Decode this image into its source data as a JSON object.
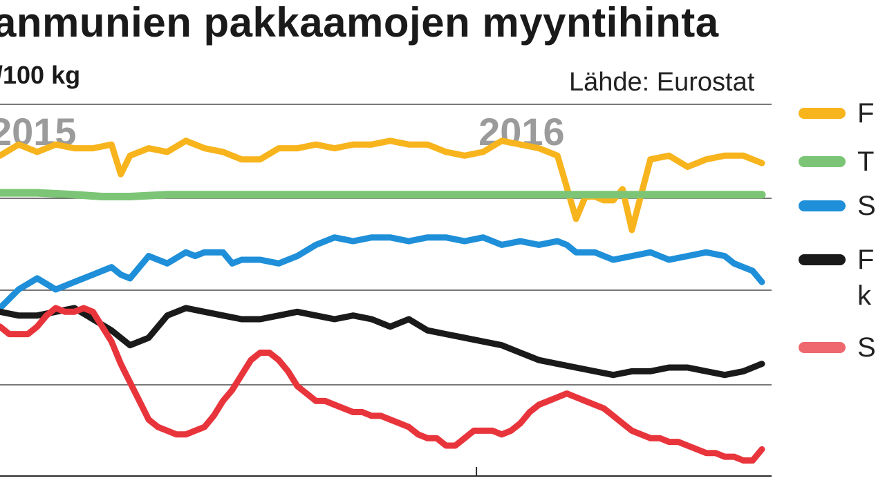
{
  "chart_data": {
    "type": "line",
    "title": "anmunien pakkaamojen myyntihinta",
    "unit_label": "/100 kg",
    "source": "Lähde: Eurostat",
    "year_labels": [
      {
        "label": "2015",
        "x": 1
      },
      {
        "label": "2016",
        "x": 52.5
      }
    ],
    "x_range": [
      1,
      83
    ],
    "y_range": [
      0,
      100
    ],
    "series": [
      {
        "color": "#F7B41C",
        "legend_text": "F",
        "x": [
          1,
          3,
          5,
          7,
          9,
          11,
          13,
          14,
          15,
          17,
          19,
          21,
          23,
          25,
          27,
          29,
          31,
          33,
          35,
          37,
          39,
          41,
          43,
          45,
          47,
          49,
          51,
          53,
          55,
          57,
          59,
          61,
          63,
          64,
          65,
          66,
          67,
          68,
          69,
          71,
          73,
          75,
          77,
          79,
          81,
          83
        ],
        "values": [
          86,
          89,
          87,
          89,
          88,
          88,
          89,
          81,
          86,
          88,
          87,
          90,
          88,
          87,
          85,
          85,
          88,
          88,
          89,
          88,
          89,
          89,
          90,
          89,
          89,
          87,
          86,
          87,
          90,
          89,
          88,
          86,
          69,
          75,
          75,
          74,
          74,
          77,
          66,
          85,
          86,
          83,
          85,
          86,
          86,
          84
        ]
      },
      {
        "color": "#7CC576",
        "legend_text": "T",
        "x": [
          1,
          5,
          9,
          12,
          15,
          19,
          23,
          27,
          31,
          35,
          39,
          43,
          47,
          51,
          55,
          59,
          63,
          67,
          71,
          75,
          79,
          83
        ],
        "values": [
          76,
          76,
          75.5,
          75,
          75,
          75.5,
          75.5,
          75.5,
          75.5,
          75.5,
          75.5,
          75.5,
          75.5,
          75.5,
          75.5,
          75.5,
          75.5,
          75.5,
          75.5,
          75.5,
          75.5,
          75.5
        ]
      },
      {
        "color": "#1E8FD8",
        "legend_text": "S",
        "x": [
          1,
          3,
          5,
          7,
          9,
          11,
          12,
          13,
          14,
          15,
          17,
          19,
          21,
          22,
          23,
          25,
          26,
          27,
          29,
          31,
          33,
          35,
          37,
          39,
          41,
          43,
          45,
          47,
          49,
          51,
          53,
          55,
          57,
          59,
          61,
          62,
          63,
          65,
          67,
          69,
          71,
          73,
          75,
          77,
          79,
          80,
          81,
          82,
          83
        ],
        "values": [
          45,
          50,
          53,
          50,
          52,
          54,
          55,
          56,
          54,
          53,
          59,
          57,
          60,
          59,
          60,
          60,
          57,
          58,
          58,
          57,
          59,
          62,
          64,
          63,
          64,
          64,
          63,
          64,
          64,
          63,
          64,
          62,
          63,
          62,
          63,
          62,
          60,
          60,
          58,
          59,
          60,
          58,
          59,
          60,
          59,
          57,
          56,
          55,
          52
        ]
      },
      {
        "color": "#1A1A1A",
        "legend_text": "F",
        "legend_text_2": "k",
        "x": [
          1,
          3,
          5,
          7,
          9,
          11,
          13,
          15,
          17,
          19,
          21,
          23,
          25,
          27,
          29,
          31,
          33,
          35,
          37,
          39,
          41,
          43,
          45,
          47,
          49,
          51,
          53,
          55,
          57,
          59,
          61,
          63,
          65,
          67,
          69,
          71,
          73,
          75,
          77,
          79,
          81,
          83
        ],
        "values": [
          44,
          43,
          43,
          44,
          45,
          42,
          39,
          35,
          37,
          43,
          45,
          44,
          43,
          42,
          42,
          43,
          44,
          43,
          42,
          43,
          42,
          40,
          42,
          39,
          38,
          37,
          36,
          35,
          33,
          31,
          30,
          29,
          28,
          27,
          28,
          28,
          29,
          29,
          28,
          27,
          28,
          30
        ]
      },
      {
        "color": "#E8353C",
        "legend_text": "S",
        "x": [
          1,
          2,
          3,
          4,
          5,
          6,
          7,
          8,
          9,
          10,
          11,
          12,
          13,
          14,
          15,
          16,
          17,
          18,
          19,
          20,
          21,
          22,
          23,
          24,
          25,
          26,
          27,
          28,
          29,
          30,
          31,
          32,
          33,
          34,
          35,
          36,
          37,
          38,
          39,
          40,
          41,
          42,
          43,
          44,
          45,
          46,
          47,
          48,
          49,
          50,
          51,
          52,
          53,
          54,
          55,
          56,
          57,
          58,
          59,
          60,
          61,
          62,
          63,
          64,
          65,
          66,
          67,
          68,
          69,
          70,
          71,
          72,
          73,
          74,
          75,
          76,
          77,
          78,
          79,
          80,
          81,
          82,
          83
        ],
        "values": [
          40,
          38,
          38,
          38,
          40,
          43,
          45,
          44,
          44,
          45,
          44,
          40,
          36,
          30,
          25,
          20,
          15,
          13,
          12,
          11,
          11,
          12,
          13,
          16,
          20,
          23,
          27,
          31,
          33,
          33,
          31,
          28,
          24,
          22,
          20,
          20,
          19,
          18,
          17,
          17,
          16,
          16,
          15,
          14,
          13,
          11,
          10,
          10,
          8,
          8,
          10,
          12,
          12,
          12,
          11,
          12,
          14,
          17,
          19,
          20,
          21,
          22,
          21,
          20,
          19,
          18,
          16,
          14,
          12,
          11,
          10,
          10,
          9,
          9,
          8,
          7,
          6,
          6,
          5,
          5,
          4,
          4,
          7
        ]
      }
    ]
  }
}
